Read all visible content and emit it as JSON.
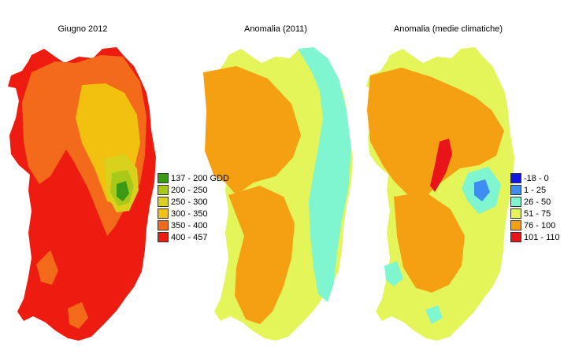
{
  "maps": [
    {
      "title": "Giugno 2012"
    },
    {
      "title": "Anomalia (2011)"
    },
    {
      "title": "Anomalia (medie climatiche)"
    }
  ],
  "legend_gdd": {
    "items": [
      {
        "label": "137 - 200 GDD",
        "color": "#3a9a12"
      },
      {
        "label": "200 - 250",
        "color": "#a8c81a"
      },
      {
        "label": "250 - 300",
        "color": "#d8d21c"
      },
      {
        "label": "300 - 350",
        "color": "#f2c10f"
      },
      {
        "label": "350 - 400",
        "color": "#f26a1a"
      },
      {
        "label": "400 - 457",
        "color": "#ee1c10"
      }
    ]
  },
  "legend_anomaly": {
    "items": [
      {
        "label": "-18 - 0",
        "color": "#1414e6"
      },
      {
        "label": "1 - 25",
        "color": "#3d8ef0"
      },
      {
        "label": "26 - 50",
        "color": "#7ff5d0"
      },
      {
        "label": "51 - 75",
        "color": "#e4f55a"
      },
      {
        "label": "76 - 100",
        "color": "#f5a012"
      },
      {
        "label": "101 - 110",
        "color": "#e8141a"
      }
    ]
  }
}
